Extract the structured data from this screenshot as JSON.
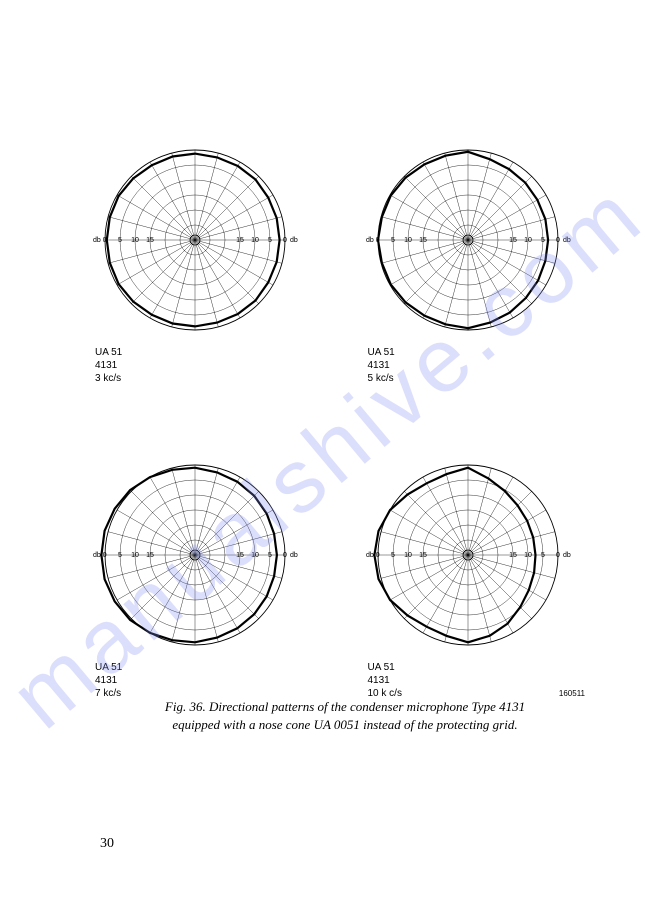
{
  "watermark": "manualshive.com",
  "charts": [
    {
      "model": "UA 51",
      "type_no": "4131",
      "freq": "3 kc/s",
      "ticks": [
        "5",
        "10",
        "15",
        "15",
        "10",
        "5",
        "0"
      ],
      "db_left": "db 0",
      "db_right": "db",
      "pattern_r": [
        0.96,
        0.96,
        0.96,
        0.97,
        0.98,
        0.98,
        0.98,
        0.98,
        0.98,
        0.97,
        0.96,
        0.96,
        0.96,
        0.95,
        0.95,
        0.95,
        0.94,
        0.94,
        0.94,
        0.94,
        0.94,
        0.95,
        0.95,
        0.95
      ]
    },
    {
      "model": "UA 51",
      "type_no": "4131",
      "freq": "5 kc/s",
      "ticks": [
        "5",
        "10",
        "15",
        "15",
        "10",
        "5",
        "0"
      ],
      "db_left": "db 0",
      "db_right": "db",
      "pattern_r": [
        0.98,
        0.97,
        0.97,
        0.98,
        0.99,
        0.99,
        1.0,
        0.99,
        0.99,
        0.98,
        0.97,
        0.97,
        0.98,
        0.93,
        0.91,
        0.9,
        0.89,
        0.89,
        0.89,
        0.89,
        0.9,
        0.91,
        0.93,
        0.95
      ]
    },
    {
      "model": "UA 51",
      "type_no": "4131",
      "freq": "7 kc/s",
      "ticks": [
        "5",
        "10",
        "15",
        "15",
        "10",
        "5",
        "0"
      ],
      "db_left": "db 0",
      "db_right": "db",
      "pattern_r": [
        0.97,
        0.98,
        1.0,
        1.02,
        1.03,
        1.04,
        1.04,
        1.04,
        1.03,
        1.02,
        1.0,
        0.98,
        0.97,
        0.95,
        0.94,
        0.93,
        0.92,
        0.91,
        0.91,
        0.91,
        0.92,
        0.93,
        0.94,
        0.95
      ]
    },
    {
      "model": "UA 51",
      "type_no": "4131",
      "freq": "10 k c/s",
      "ticks": [
        "5",
        "10",
        "15",
        "15",
        "10",
        "5",
        "0"
      ],
      "db_left": "db 0",
      "db_right": "db",
      "pattern_r": [
        0.97,
        0.93,
        0.92,
        0.95,
        1.0,
        1.03,
        1.04,
        1.03,
        1.0,
        0.95,
        0.92,
        0.93,
        0.97,
        0.88,
        0.82,
        0.78,
        0.76,
        0.75,
        0.75,
        0.76,
        0.78,
        0.82,
        0.88,
        0.93
      ]
    }
  ],
  "figure_id": "160511",
  "caption_line1": "Fig. 36.  Directional patterns of the condenser microphone Type 4131",
  "caption_line2": "equipped with a nose cone UA 0051 instead of the protecting grid.",
  "page_number": "30",
  "grid_color": "#000000",
  "pattern_color": "#000000",
  "background_color": "#ffffff",
  "radial_divisions": 6,
  "angular_divisions": 24
}
